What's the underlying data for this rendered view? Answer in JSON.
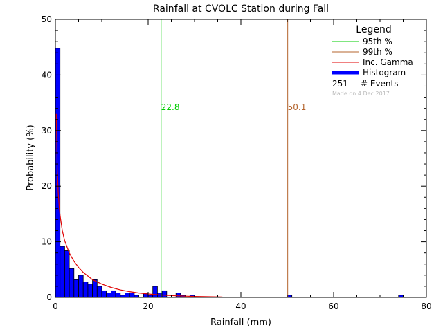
{
  "chart_data": {
    "type": "bar",
    "title": "Rainfall at CVOLC Station during Fall",
    "xlabel": "Rainfall (mm)",
    "ylabel": "Probability (%)",
    "xlim": [
      0,
      80
    ],
    "ylim": [
      0,
      50
    ],
    "xticks": [
      "0",
      "20",
      "40",
      "60",
      "80"
    ],
    "yticks": [
      "0",
      "10",
      "20",
      "30",
      "40",
      "50"
    ],
    "bin_width": 1,
    "histogram": {
      "name": "Histogram",
      "bin_starts": [
        0,
        1,
        2,
        3,
        4,
        5,
        6,
        7,
        8,
        9,
        10,
        11,
        12,
        13,
        14,
        15,
        16,
        17,
        19,
        20,
        21,
        22,
        23,
        26,
        27,
        29,
        50,
        74
      ],
      "values": [
        44.8,
        9.2,
        8.4,
        5.2,
        3.2,
        4.0,
        2.8,
        2.4,
        3.2,
        2.0,
        1.2,
        0.8,
        1.2,
        0.8,
        0.4,
        0.8,
        0.8,
        0.4,
        0.8,
        0.4,
        2.0,
        0.8,
        1.2,
        0.8,
        0.4,
        0.4,
        0.4,
        0.4
      ]
    },
    "gamma_curve": {
      "name": "Inc. Gamma",
      "x": [
        0.2,
        0.4,
        0.6,
        0.8,
        1,
        1.5,
        2,
        3,
        4,
        5,
        6,
        8,
        10,
        12,
        14,
        16,
        18,
        20,
        22,
        24,
        26,
        28,
        30,
        33,
        36
      ],
      "y": [
        33,
        23,
        19,
        16.5,
        14.8,
        12,
        10.2,
        8,
        6.5,
        5.4,
        4.5,
        3.2,
        2.4,
        1.8,
        1.35,
        1.05,
        0.8,
        0.62,
        0.48,
        0.37,
        0.29,
        0.22,
        0.17,
        0.12,
        0.08
      ]
    },
    "percentile_lines": [
      {
        "name": "95th %",
        "x": 22.8,
        "label": "22.8",
        "color": "#00cc00"
      },
      {
        "name": "99th %",
        "x": 50.1,
        "label": "50.1",
        "color": "#b4642d"
      }
    ],
    "legend": {
      "title": "Legend",
      "placement": "top-right",
      "entries": [
        {
          "label": "95th %",
          "color": "#00cc00",
          "style": "line"
        },
        {
          "label": "99th %",
          "color": "#b4642d",
          "style": "line"
        },
        {
          "label": "Inc. Gamma",
          "color": "#e00000",
          "style": "line"
        },
        {
          "label": "Histogram",
          "color": "#0000ff",
          "style": "thick"
        }
      ],
      "events_count": "251",
      "events_label": "# Events",
      "note": "Made on 4 Dec 2017"
    },
    "colors": {
      "bar_fill": "#0000ff",
      "bar_edge": "#000000",
      "gamma": "#e00000"
    }
  }
}
